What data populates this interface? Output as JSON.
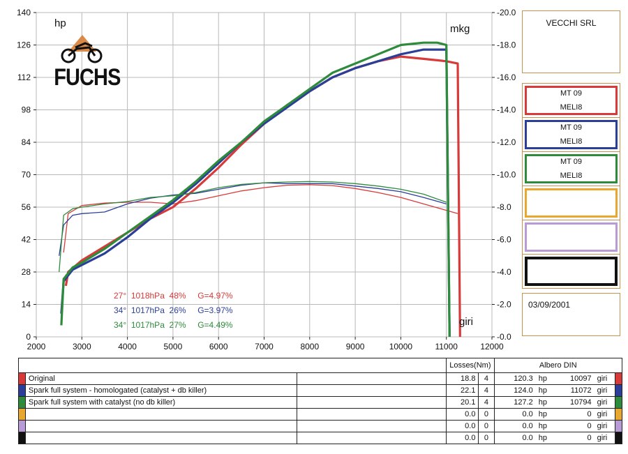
{
  "chart_data": {
    "type": "line",
    "xlabel": "giri",
    "y_left_label": "hp",
    "y_right_label": "mkg",
    "xlim": [
      2000,
      12000
    ],
    "ylim_left": [
      0,
      140
    ],
    "ylim_right": [
      0.0,
      20.0
    ],
    "x_ticks": [
      "2000",
      "3000",
      "4000",
      "5000",
      "6000",
      "7000",
      "8000",
      "9000",
      "10000",
      "11000",
      "12000"
    ],
    "y_left_ticks": [
      "0",
      "14",
      "28",
      "42",
      "56",
      "70",
      "84",
      "98",
      "112",
      "126",
      "140"
    ],
    "y_right_ticks": [
      "0.0",
      "2.0",
      "4.0",
      "6.0",
      "8.0",
      "10.0",
      "12.0",
      "14.0",
      "16.0",
      "18.0",
      "20.0"
    ],
    "grid": true,
    "series": [
      {
        "color": "#d83a3a",
        "power_hp": [
          [
            2650,
            22
          ],
          [
            2700,
            28
          ],
          [
            3000,
            33
          ],
          [
            3500,
            39
          ],
          [
            4000,
            45
          ],
          [
            4500,
            51
          ],
          [
            5000,
            56
          ],
          [
            5500,
            64
          ],
          [
            6000,
            73
          ],
          [
            6500,
            83
          ],
          [
            7000,
            92
          ],
          [
            7500,
            100
          ],
          [
            8000,
            106
          ],
          [
            8500,
            112
          ],
          [
            9000,
            116
          ],
          [
            9500,
            119
          ],
          [
            10000,
            121
          ],
          [
            10500,
            120
          ],
          [
            11000,
            119
          ],
          [
            11250,
            118
          ],
          [
            11300,
            0
          ]
        ],
        "torque_mkg": [
          [
            2600,
            5.2
          ],
          [
            2700,
            7.6
          ],
          [
            3000,
            8.1
          ],
          [
            3500,
            8.25
          ],
          [
            4000,
            8.3
          ],
          [
            4500,
            8.3
          ],
          [
            5000,
            8.2
          ],
          [
            5500,
            8.4
          ],
          [
            6000,
            8.7
          ],
          [
            6500,
            9.0
          ],
          [
            7000,
            9.2
          ],
          [
            7500,
            9.35
          ],
          [
            8000,
            9.38
          ],
          [
            8500,
            9.33
          ],
          [
            9000,
            9.15
          ],
          [
            9500,
            8.9
          ],
          [
            10000,
            8.6
          ],
          [
            10500,
            8.2
          ],
          [
            11000,
            7.8
          ],
          [
            11250,
            7.6
          ]
        ]
      },
      {
        "color": "#2c3f98",
        "power_hp": [
          [
            2550,
            10
          ],
          [
            2600,
            24
          ],
          [
            2800,
            29
          ],
          [
            3000,
            31
          ],
          [
            3500,
            36
          ],
          [
            4000,
            43
          ],
          [
            4500,
            51
          ],
          [
            5000,
            58
          ],
          [
            5500,
            66
          ],
          [
            6000,
            75
          ],
          [
            6500,
            84
          ],
          [
            7000,
            92
          ],
          [
            7500,
            99
          ],
          [
            8000,
            106
          ],
          [
            8500,
            112
          ],
          [
            9000,
            116
          ],
          [
            9500,
            119
          ],
          [
            10000,
            122
          ],
          [
            10500,
            124
          ],
          [
            11000,
            124
          ],
          [
            11070,
            0
          ]
        ],
        "torque_mkg": [
          [
            2500,
            5.0
          ],
          [
            2600,
            6.9
          ],
          [
            2800,
            7.5
          ],
          [
            3000,
            7.6
          ],
          [
            3500,
            7.7
          ],
          [
            4000,
            8.2
          ],
          [
            4500,
            8.55
          ],
          [
            5000,
            8.75
          ],
          [
            5500,
            8.85
          ],
          [
            6000,
            9.1
          ],
          [
            6500,
            9.35
          ],
          [
            7000,
            9.5
          ],
          [
            7500,
            9.45
          ],
          [
            8000,
            9.45
          ],
          [
            8500,
            9.45
          ],
          [
            9000,
            9.3
          ],
          [
            9500,
            9.15
          ],
          [
            10000,
            8.95
          ],
          [
            10500,
            8.6
          ],
          [
            11000,
            8.2
          ]
        ]
      },
      {
        "color": "#2e8b3c",
        "power_hp": [
          [
            2550,
            5
          ],
          [
            2600,
            25
          ],
          [
            2800,
            30
          ],
          [
            3000,
            32
          ],
          [
            3500,
            38
          ],
          [
            4000,
            45
          ],
          [
            4500,
            52
          ],
          [
            5000,
            59
          ],
          [
            5500,
            67
          ],
          [
            6000,
            76
          ],
          [
            6500,
            84
          ],
          [
            7000,
            93
          ],
          [
            7500,
            100
          ],
          [
            8000,
            107
          ],
          [
            8500,
            114
          ],
          [
            9000,
            118
          ],
          [
            9500,
            122
          ],
          [
            10000,
            126
          ],
          [
            10500,
            127
          ],
          [
            10800,
            127
          ],
          [
            11000,
            126
          ],
          [
            11070,
            0
          ]
        ],
        "torque_mkg": [
          [
            2500,
            4.0
          ],
          [
            2600,
            7.5
          ],
          [
            2800,
            7.9
          ],
          [
            3000,
            8.0
          ],
          [
            3500,
            8.2
          ],
          [
            4000,
            8.35
          ],
          [
            4500,
            8.6
          ],
          [
            5000,
            8.7
          ],
          [
            5500,
            8.9
          ],
          [
            6000,
            9.2
          ],
          [
            6500,
            9.4
          ],
          [
            7000,
            9.5
          ],
          [
            7500,
            9.55
          ],
          [
            8000,
            9.58
          ],
          [
            8500,
            9.55
          ],
          [
            9000,
            9.45
          ],
          [
            9500,
            9.3
          ],
          [
            10000,
            9.1
          ],
          [
            10500,
            8.8
          ],
          [
            11000,
            8.3
          ]
        ]
      }
    ],
    "conditions": [
      {
        "text": "27°  1018hPa  48%     G=4.97%",
        "color": "#d83a3a"
      },
      {
        "text": "34°  1017hPa  26%     G=3.97%",
        "color": "#2c3f98"
      },
      {
        "text": "34°  1017hPa  27%     G=4.49%",
        "color": "#2e8b3c"
      }
    ]
  },
  "logo": {
    "text": "FUCHS",
    "icon": "motorcycle-icon"
  },
  "side_panel": {
    "company": "VECCHI SRL",
    "runs": [
      {
        "line1": "MT 09",
        "line2": "MELI8",
        "color": "#d83a3a"
      },
      {
        "line1": "MT 09",
        "line2": "MELI8",
        "color": "#2c3f98"
      },
      {
        "line1": "MT 09",
        "line2": "MELI8",
        "color": "#2e8b3c"
      },
      {
        "line1": "",
        "line2": "",
        "color": "#e8a830"
      },
      {
        "line1": "",
        "line2": "",
        "color": "#b89ad6"
      },
      {
        "line1": "",
        "line2": "",
        "color": "#111111"
      }
    ],
    "date": "03/09/2001"
  },
  "table": {
    "header_losses": "Losses(Nm)",
    "header_albero": "Albero DIN",
    "rows": [
      {
        "label": "Original",
        "losses": "18.8",
        "n": "4",
        "hp": "120.3",
        "hp_unit": "hp",
        "rpm": "10097",
        "rpm_unit": "giri",
        "color": "#d83a3a"
      },
      {
        "label": "Spark full system - homologated (catalyst + db killer)",
        "losses": "22.1",
        "n": "4",
        "hp": "124.0",
        "hp_unit": "hp",
        "rpm": "11072",
        "rpm_unit": "giri",
        "color": "#2c3f98"
      },
      {
        "label": "Spark full system with catalyst (no db killer)",
        "losses": "20.1",
        "n": "4",
        "hp": "127.2",
        "hp_unit": "hp",
        "rpm": "10794",
        "rpm_unit": "giri",
        "color": "#2e8b3c"
      },
      {
        "label": "",
        "losses": "0.0",
        "n": "0",
        "hp": "0.0",
        "hp_unit": "hp",
        "rpm": "0",
        "rpm_unit": "giri",
        "color": "#e8a830"
      },
      {
        "label": "",
        "losses": "0.0",
        "n": "0",
        "hp": "0.0",
        "hp_unit": "hp",
        "rpm": "0",
        "rpm_unit": "giri",
        "color": "#b89ad6"
      },
      {
        "label": "",
        "losses": "0.0",
        "n": "0",
        "hp": "0.0",
        "hp_unit": "hp",
        "rpm": "0",
        "rpm_unit": "giri",
        "color": "#111111"
      }
    ]
  }
}
